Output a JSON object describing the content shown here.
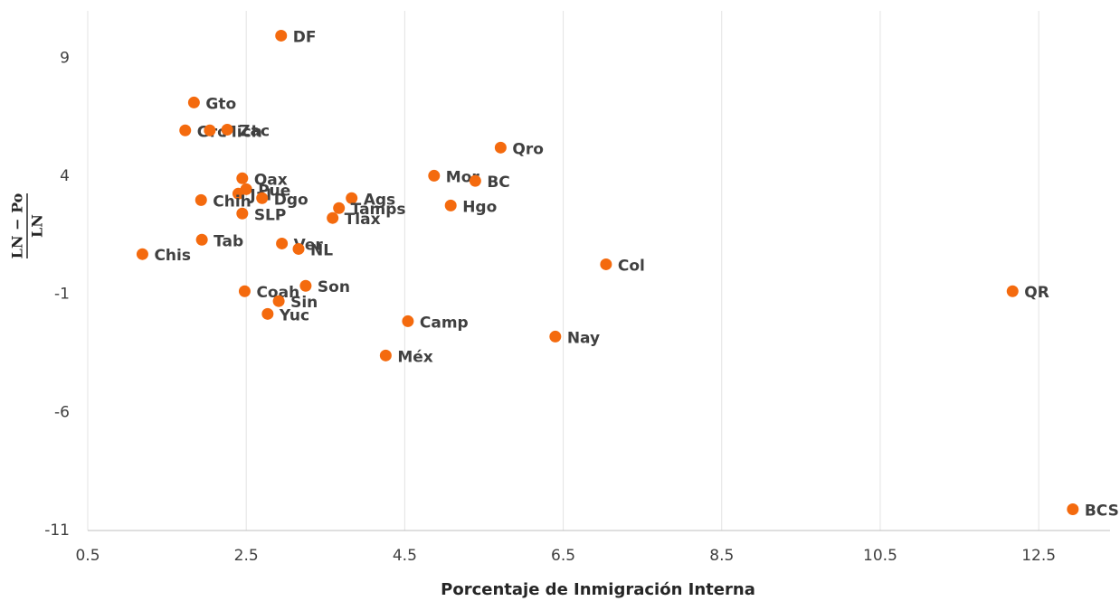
{
  "chart_data": {
    "type": "scatter",
    "x_label": "Porcentaje de Inmigración Interna",
    "y_label_numerator": "LN − Po",
    "y_label_denominator": "LN",
    "color": "#f46a0e",
    "grid": true,
    "xlim": [
      0.5,
      13.4
    ],
    "ylim": [
      -11,
      11
    ],
    "xticks": [
      0.5,
      2.5,
      4.5,
      6.5,
      8.5,
      10.5,
      12.5
    ],
    "yticks": [
      -11,
      -6,
      -1,
      4,
      9
    ],
    "labels": [
      "DF",
      "Gto",
      "Gro",
      "Mich",
      "Zac",
      "Qro",
      "Oax",
      "Mor",
      "BC",
      "Pue",
      "Jal",
      "Chih",
      "Dgo",
      "Ags",
      "Tamps",
      "Hgo",
      "SLP",
      "Tlax",
      "Tab",
      "Ver",
      "NL",
      "Chis",
      "Col",
      "Son",
      "Coah",
      "Sin",
      "Yuc",
      "Camp",
      "Nay",
      "Méx",
      "QR",
      "BCS"
    ],
    "x": [
      2.94,
      1.84,
      1.73,
      2.04,
      2.26,
      5.71,
      2.45,
      4.87,
      5.39,
      2.5,
      2.4,
      1.93,
      2.7,
      3.83,
      3.67,
      5.08,
      2.45,
      3.59,
      1.94,
      2.95,
      3.16,
      1.19,
      7.04,
      3.25,
      2.48,
      2.91,
      2.77,
      4.54,
      6.4,
      4.26,
      12.17,
      12.93
    ],
    "values": [
      9.95,
      7.12,
      5.94,
      5.94,
      5.97,
      5.21,
      3.91,
      4.02,
      3.8,
      3.45,
      3.26,
      2.99,
      3.07,
      3.07,
      2.65,
      2.76,
      2.42,
      2.23,
      1.31,
      1.15,
      0.92,
      0.7,
      0.27,
      -0.64,
      -0.87,
      -1.29,
      -1.83,
      -2.14,
      -2.79,
      -3.59,
      -0.87,
      -10.1
    ]
  }
}
